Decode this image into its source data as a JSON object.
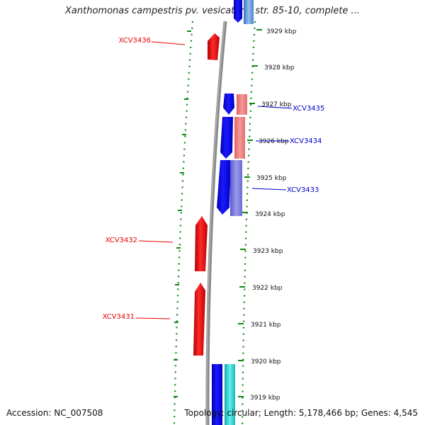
{
  "title": "Xanthomonas campestris pv. vesicatoria str. 85-10, complete ...",
  "footer": {
    "accession": "Accession: NC_007508",
    "topology": "Topology: circular; Length: 5,178,466 bp; Genes: 4,545"
  },
  "scale_unit": "kbp",
  "ticks": [
    {
      "kbp": 3929,
      "label": "3929 kbp"
    },
    {
      "kbp": 3928,
      "label": "3928 kbp"
    },
    {
      "kbp": 3927,
      "label": "3927 kbp"
    },
    {
      "kbp": 3926,
      "label": "3926 kbp"
    },
    {
      "kbp": 3925,
      "label": "3925 kbp"
    },
    {
      "kbp": 3924,
      "label": "3924 kbp"
    },
    {
      "kbp": 3923,
      "label": "3923 kbp"
    },
    {
      "kbp": 3922,
      "label": "3922 kbp"
    },
    {
      "kbp": 3921,
      "label": "3921 kbp"
    },
    {
      "kbp": 3920,
      "label": "3920 kbp"
    },
    {
      "kbp": 3919,
      "label": "3919 kbp"
    }
  ],
  "genes": [
    {
      "name": "XCV3436",
      "color": "#ee0000",
      "side": "left"
    },
    {
      "name": "XCV3435",
      "color": "#0000cc",
      "side": "right"
    },
    {
      "name": "XCV3434",
      "color": "#0000cc",
      "side": "right"
    },
    {
      "name": "XCV3433",
      "color": "#0000cc",
      "side": "right"
    },
    {
      "name": "XCV3432",
      "color": "#ee0000",
      "side": "left"
    },
    {
      "name": "XCV3431",
      "color": "#ee0000",
      "side": "left"
    }
  ],
  "colors": {
    "forward_strand": "#0000ee",
    "reverse_strand": "#ee1111",
    "cog_salmon": "#f07070",
    "cog_slate": "#7070dd",
    "cog_cyan": "#22cccc",
    "cog_lightblue": "#6699cc",
    "backbone": "#808080",
    "dotted_ring": "#118811"
  }
}
